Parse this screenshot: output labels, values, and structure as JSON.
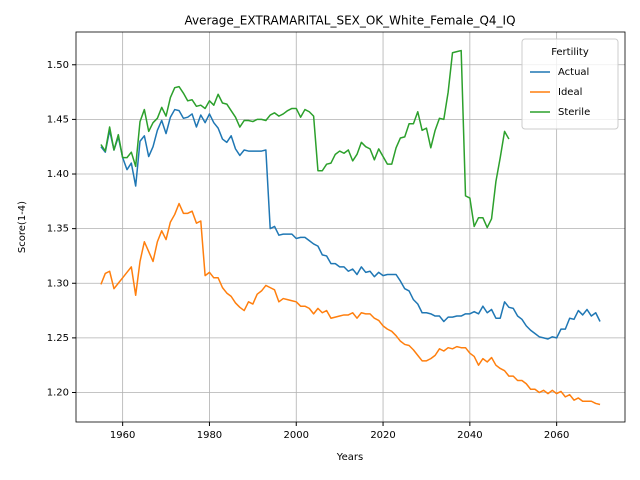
{
  "chart_data": {
    "type": "line",
    "title": "Average_EXTRAMARITAL_SEX_OK_White_Female_Q4_IQ",
    "x_label": "Years",
    "y_label": "Score(1-4)",
    "legend_title": "Fertility",
    "legend": "upper right",
    "grid": true,
    "xlim": [
      1949.25,
      2075.75
    ],
    "ylim": [
      1.173,
      1.53
    ],
    "xticks": [
      1960,
      1980,
      2000,
      2020,
      2040,
      2060
    ],
    "yticks": [
      {
        "value": 1.2,
        "label": "1.20"
      },
      {
        "value": 1.25,
        "label": "1.25"
      },
      {
        "value": 1.3,
        "label": "1.30"
      },
      {
        "value": 1.35,
        "label": "1.35"
      },
      {
        "value": 1.4,
        "label": "1.40"
      },
      {
        "value": 1.45,
        "label": "1.45"
      },
      {
        "value": 1.5,
        "label": "1.50"
      }
    ],
    "x": [
      1955,
      1956,
      1957,
      1958,
      1959,
      1960,
      1961,
      1962,
      1963,
      1964,
      1965,
      1966,
      1967,
      1968,
      1969,
      1970,
      1971,
      1972,
      1973,
      1974,
      1975,
      1976,
      1977,
      1978,
      1979,
      1980,
      1981,
      1982,
      1983,
      1984,
      1985,
      1986,
      1987,
      1988,
      1989,
      1990,
      1991,
      1992,
      1993,
      1994,
      1995,
      1996,
      1997,
      1998,
      1999,
      2000,
      2001,
      2002,
      2003,
      2004,
      2005,
      2006,
      2007,
      2008,
      2009,
      2010,
      2011,
      2012,
      2013,
      2014,
      2015,
      2016,
      2017,
      2018,
      2019,
      2020,
      2021,
      2022,
      2023,
      2024,
      2025,
      2026,
      2027,
      2028,
      2029,
      2030,
      2031,
      2032,
      2033,
      2034,
      2035,
      2036,
      2037,
      2038,
      2039,
      2040,
      2041,
      2042,
      2043,
      2044,
      2045,
      2046,
      2047,
      2048,
      2049,
      2050,
      2051,
      2052,
      2053,
      2054,
      2055,
      2056,
      2057,
      2058,
      2059,
      2060,
      2061,
      2062,
      2063,
      2064,
      2065,
      2066,
      2067,
      2068,
      2069,
      2070
    ],
    "series": [
      {
        "name": "Actual",
        "color": "#1f77b4",
        "values": [
          1.425,
          1.42,
          1.44,
          1.422,
          1.434,
          1.415,
          1.404,
          1.41,
          1.389,
          1.43,
          1.435,
          1.416,
          1.425,
          1.44,
          1.449,
          1.437,
          1.452,
          1.459,
          1.458,
          1.451,
          1.452,
          1.455,
          1.443,
          1.454,
          1.447,
          1.455,
          1.447,
          1.442,
          1.432,
          1.429,
          1.435,
          1.423,
          1.417,
          1.422,
          1.421,
          1.421,
          1.421,
          1.421,
          1.422,
          1.35,
          1.352,
          1.344,
          1.345,
          1.345,
          1.345,
          1.341,
          1.342,
          1.342,
          1.339,
          1.336,
          1.334,
          1.326,
          1.325,
          1.318,
          1.318,
          1.315,
          1.315,
          1.311,
          1.313,
          1.308,
          1.315,
          1.31,
          1.311,
          1.306,
          1.31,
          1.307,
          1.308,
          1.308,
          1.308,
          1.302,
          1.295,
          1.293,
          1.285,
          1.281,
          1.273,
          1.273,
          1.272,
          1.27,
          1.27,
          1.265,
          1.269,
          1.269,
          1.27,
          1.27,
          1.272,
          1.272,
          1.274,
          1.272,
          1.279,
          1.273,
          1.276,
          1.268,
          1.268,
          1.283,
          1.278,
          1.277,
          1.27,
          1.267,
          1.261,
          1.257,
          1.254,
          1.251,
          1.25,
          1.249,
          1.251,
          1.25,
          1.258,
          1.258,
          1.268,
          1.267,
          1.275,
          1.271,
          1.276,
          1.27,
          1.273,
          1.265
        ]
      },
      {
        "name": "Ideal",
        "color": "#ff7f0e",
        "values": [
          1.299,
          1.309,
          1.311,
          1.295,
          1.3,
          1.305,
          1.31,
          1.315,
          1.289,
          1.32,
          1.338,
          1.329,
          1.32,
          1.338,
          1.348,
          1.34,
          1.356,
          1.363,
          1.373,
          1.364,
          1.364,
          1.366,
          1.355,
          1.357,
          1.307,
          1.31,
          1.305,
          1.305,
          1.296,
          1.291,
          1.288,
          1.282,
          1.278,
          1.275,
          1.283,
          1.281,
          1.29,
          1.293,
          1.298,
          1.296,
          1.294,
          1.283,
          1.286,
          1.285,
          1.284,
          1.283,
          1.279,
          1.279,
          1.277,
          1.272,
          1.277,
          1.273,
          1.275,
          1.268,
          1.269,
          1.27,
          1.271,
          1.271,
          1.273,
          1.268,
          1.273,
          1.272,
          1.272,
          1.268,
          1.266,
          1.261,
          1.258,
          1.256,
          1.252,
          1.247,
          1.244,
          1.243,
          1.239,
          1.234,
          1.229,
          1.229,
          1.231,
          1.234,
          1.24,
          1.238,
          1.241,
          1.24,
          1.242,
          1.241,
          1.241,
          1.236,
          1.233,
          1.225,
          1.231,
          1.228,
          1.232,
          1.225,
          1.222,
          1.22,
          1.215,
          1.215,
          1.211,
          1.211,
          1.208,
          1.203,
          1.203,
          1.2,
          1.202,
          1.199,
          1.202,
          1.199,
          1.201,
          1.196,
          1.198,
          1.193,
          1.195,
          1.192,
          1.192,
          1.192,
          1.19,
          1.189
        ]
      },
      {
        "name": "Sterile",
        "color": "#2ca02c",
        "values": [
          1.427,
          1.421,
          1.443,
          1.422,
          1.436,
          1.415,
          1.415,
          1.42,
          1.407,
          1.448,
          1.459,
          1.439,
          1.447,
          1.451,
          1.461,
          1.453,
          1.47,
          1.479,
          1.48,
          1.474,
          1.467,
          1.468,
          1.462,
          1.463,
          1.46,
          1.467,
          1.463,
          1.473,
          1.465,
          1.464,
          1.458,
          1.452,
          1.443,
          1.449,
          1.449,
          1.448,
          1.45,
          1.45,
          1.449,
          1.454,
          1.456,
          1.453,
          1.455,
          1.458,
          1.46,
          1.46,
          1.452,
          1.459,
          1.457,
          1.453,
          1.403,
          1.403,
          1.409,
          1.41,
          1.418,
          1.421,
          1.419,
          1.422,
          1.412,
          1.418,
          1.429,
          1.425,
          1.423,
          1.413,
          1.423,
          1.416,
          1.409,
          1.409,
          1.424,
          1.433,
          1.434,
          1.446,
          1.446,
          1.457,
          1.44,
          1.442,
          1.424,
          1.44,
          1.451,
          1.45,
          1.475,
          1.511,
          1.512,
          1.513,
          1.38,
          1.378,
          1.352,
          1.36,
          1.36,
          1.351,
          1.359,
          1.393,
          1.415,
          1.439,
          1.432,
          null,
          null,
          null,
          null,
          null,
          null,
          null,
          null,
          null,
          null,
          null,
          null,
          null,
          null,
          null,
          null,
          null,
          null,
          null,
          null,
          null
        ]
      }
    ]
  }
}
